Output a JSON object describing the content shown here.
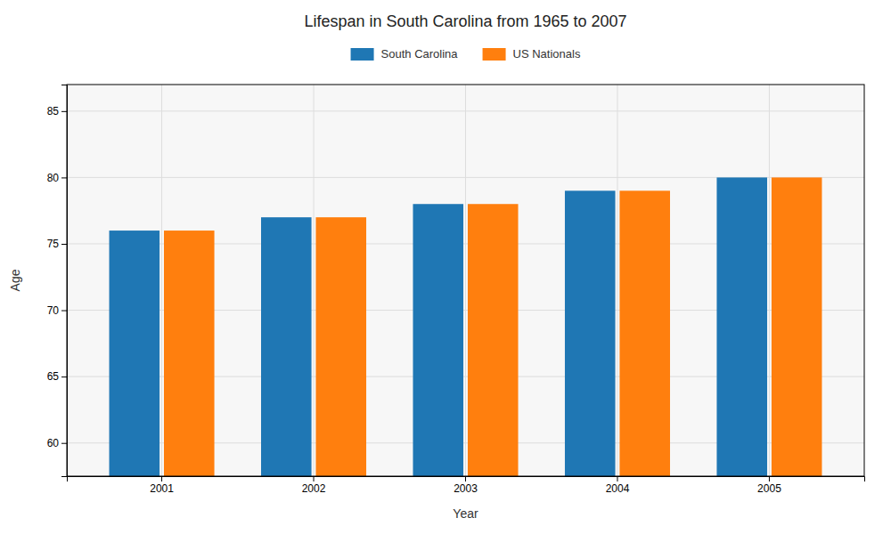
{
  "chart_data": {
    "type": "bar",
    "title": "Lifespan in South Carolina from 1965 to 2007",
    "x_label": "Year",
    "y_label": "Age",
    "categories": [
      "2001",
      "2002",
      "2003",
      "2004",
      "2005"
    ],
    "series": [
      {
        "name": "South Carolina",
        "values": [
          76,
          77,
          78,
          79,
          80
        ]
      },
      {
        "name": "US Nationals",
        "values": [
          76,
          77,
          78,
          79,
          80
        ]
      }
    ],
    "ylim": [
      57.5,
      87
    ],
    "yticks": [
      60,
      65,
      70,
      75,
      80,
      85
    ],
    "grid": true,
    "legend": "top"
  }
}
